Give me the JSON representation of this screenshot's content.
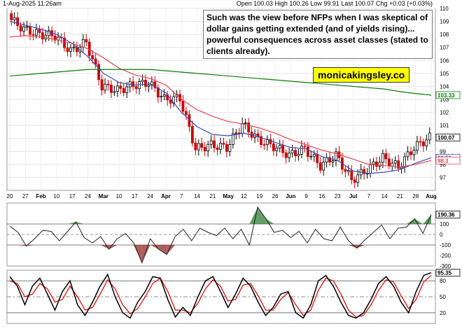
{
  "header": {
    "date": "1-Aug-2025 11:26am",
    "ohlc": "Open 100.03  High 100.26  Low 99.91  Last 100.07  Chg +0.03 (+0.03%)"
  },
  "annotation": {
    "text": "Such was the view before NFPs when I was skeptical of dollar gains getting extended (and of yields rising)... powerful consequences across asset classes (stated to clients already)."
  },
  "branding": {
    "text": "monicakingsley.co"
  },
  "colors": {
    "up": "#000000",
    "down": "#cc0000",
    "ma_fast": "#3b4bb5",
    "ma_mid": "#e0475a",
    "ma_long": "#0a7a0a",
    "cci_fill": "#2e7d32",
    "cci_neg_fill": "#8b1a1a",
    "stoch_k": "#000000",
    "stoch_d": "#e00000"
  },
  "chart_data": [
    {
      "type": "candlestick",
      "ylim": [
        96,
        110
      ],
      "y_ticks": [
        97,
        98,
        99,
        100,
        101,
        102,
        103,
        104,
        105,
        106,
        107,
        108,
        109,
        110
      ],
      "x_ticks": [
        "20",
        "27",
        "Feb",
        "10",
        "17",
        "24",
        "Mar",
        "10",
        "17",
        "24",
        "Apr",
        "7",
        "14",
        "21",
        "May",
        "12",
        "19",
        "26",
        "Jun",
        "9",
        "16",
        "23",
        "Jul",
        "7",
        "14",
        "21",
        "28",
        "Aug"
      ],
      "x_tick_dates": [
        "2025-01-20",
        "2025-01-27",
        "2025-02-03",
        "2025-02-10",
        "2025-02-17",
        "2025-02-24",
        "2025-03-03",
        "2025-03-10",
        "2025-03-17",
        "2025-03-24",
        "2025-03-31",
        "2025-04-07",
        "2025-04-14",
        "2025-04-21",
        "2025-04-28",
        "2025-05-12",
        "2025-05-19",
        "2025-05-26",
        "2025-06-02",
        "2025-06-09",
        "2025-06-16",
        "2025-06-23",
        "2025-06-30",
        "2025-07-07",
        "2025-07-14",
        "2025-07-21",
        "2025-07-28",
        "2025-08-01"
      ],
      "close_weekly": [
        109.3,
        108.4,
        108.0,
        107.9,
        106.7,
        107.4,
        104.0,
        103.7,
        104.1,
        104.3,
        103.0,
        103.1,
        99.2,
        99.5,
        99.3,
        101.1,
        99.9,
        99.4,
        98.7,
        99.2,
        97.9,
        98.7,
        96.8,
        97.6,
        98.5,
        97.8,
        99.3,
        100.07
      ],
      "price_labels": [
        {
          "value": 103.33,
          "label": "103.33",
          "color": "#0a7a0a"
        },
        {
          "value": 100.07,
          "label": "100.07",
          "color": "#000000"
        },
        {
          "value": 98.51,
          "label": "98.51",
          "color": "#3b4bb5"
        },
        {
          "value": 98.3,
          "label": "98.3",
          "color": "#e0475a"
        }
      ],
      "moving_averages": [
        {
          "key": "ma_fast",
          "values": [
            109.0,
            108.7,
            108.4,
            108.0,
            107.3,
            106.3,
            105.0,
            104.3,
            104.1,
            104.2,
            103.5,
            102.0,
            100.9,
            100.3,
            100.2,
            100.4,
            100.1,
            99.7,
            99.3,
            99.2,
            98.6,
            98.3,
            97.5,
            97.3,
            97.4,
            97.6,
            98.1,
            98.51
          ]
        },
        {
          "key": "ma_mid",
          "values": [
            107.8,
            107.9,
            107.8,
            107.6,
            107.3,
            106.9,
            106.2,
            105.4,
            104.9,
            104.6,
            104.1,
            103.0,
            102.2,
            101.7,
            101.3,
            101.1,
            100.8,
            100.4,
            99.9,
            99.5,
            99.1,
            98.8,
            98.4,
            98.0,
            97.9,
            97.8,
            98.0,
            98.3
          ]
        },
        {
          "key": "ma_long",
          "values": [
            104.8,
            104.9,
            105.0,
            105.1,
            105.2,
            105.3,
            105.3,
            105.3,
            105.3,
            105.3,
            105.2,
            105.1,
            105.0,
            104.9,
            104.8,
            104.7,
            104.6,
            104.5,
            104.4,
            104.3,
            104.2,
            104.1,
            104.0,
            103.9,
            103.8,
            103.6,
            103.45,
            103.33
          ]
        }
      ]
    },
    {
      "type": "area",
      "ylim": [
        -300,
        300
      ],
      "y_ticks": [
        -300,
        -200,
        -100,
        0,
        100,
        200
      ],
      "reference_lines": [
        100,
        -100
      ],
      "last_value": {
        "value": 190.36,
        "label": "190.36"
      },
      "values": [
        80,
        20,
        -110,
        -40,
        40,
        30,
        -60,
        30,
        120,
        -30,
        -80,
        -20,
        -140,
        -40,
        10,
        -80,
        -270,
        -40,
        -140,
        -190,
        -20,
        50,
        -60,
        60,
        20,
        -10,
        60,
        -40,
        50,
        -100,
        260,
        150,
        20,
        40,
        -30,
        30,
        -80,
        50,
        -40,
        -60,
        70,
        -60,
        -130,
        -50,
        20,
        90,
        -40,
        60,
        70,
        150,
        10,
        190.36
      ]
    },
    {
      "type": "line",
      "ylim": [
        0,
        100
      ],
      "y_ticks": [
        20,
        50,
        80
      ],
      "reference_lines": [
        80,
        50,
        20
      ],
      "last_value": {
        "value": 95.35,
        "label": "95.35"
      },
      "series_k": [
        88,
        70,
        35,
        70,
        85,
        55,
        25,
        60,
        80,
        35,
        15,
        40,
        70,
        92,
        50,
        20,
        10,
        40,
        60,
        88,
        85,
        45,
        12,
        30,
        15,
        50,
        80,
        88,
        60,
        30,
        55,
        85,
        70,
        40,
        15,
        30,
        55,
        60,
        20,
        10,
        35,
        80,
        90,
        70,
        40,
        15,
        10,
        20,
        45,
        75,
        88,
        70,
        40,
        20,
        60,
        90,
        95.35
      ],
      "series_d": [
        80,
        75,
        50,
        55,
        75,
        65,
        40,
        45,
        70,
        50,
        25,
        30,
        55,
        82,
        65,
        35,
        18,
        28,
        50,
        75,
        85,
        60,
        25,
        25,
        20,
        38,
        65,
        82,
        70,
        42,
        45,
        72,
        75,
        52,
        25,
        25,
        45,
        58,
        35,
        15,
        25,
        62,
        85,
        80,
        55,
        25,
        12,
        15,
        35,
        62,
        82,
        78,
        52,
        28,
        45,
        78,
        90
      ]
    }
  ]
}
